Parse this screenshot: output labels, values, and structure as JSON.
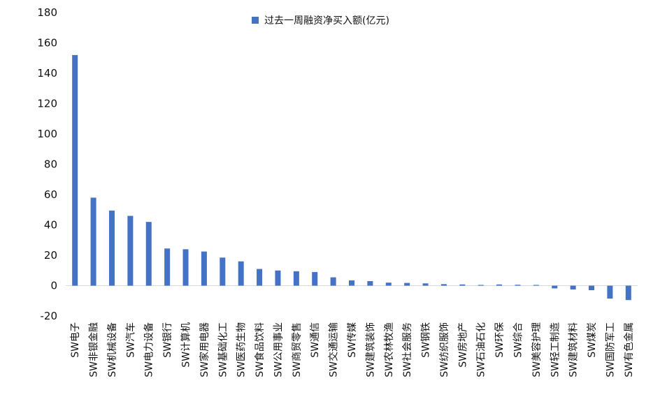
{
  "chart_data": {
    "type": "bar",
    "title": "",
    "xlabel": "",
    "ylabel": "",
    "ylim": [
      -20,
      180
    ],
    "yticks": [
      -20,
      0,
      20,
      40,
      60,
      80,
      100,
      120,
      140,
      160,
      180
    ],
    "grid": false,
    "legend_position": "top-center",
    "bar_color": "#4472C4",
    "categories": [
      "SW电子",
      "SW非银金融",
      "SW机械设备",
      "SW汽车",
      "SW电力设备",
      "SW银行",
      "SW计算机",
      "SW家用电器",
      "SW基础化工",
      "SW医药生物",
      "SW食品饮料",
      "SW公用事业",
      "SW商贸零售",
      "SW通信",
      "SW交通运输",
      "SW传媒",
      "SW建筑装饰",
      "SW农林牧渔",
      "SW社会服务",
      "SW钢铁",
      "SW纺织服饰",
      "SW房地产",
      "SW石油石化",
      "SW环保",
      "SW综合",
      "SW美容护理",
      "SW轻工制造",
      "SW建筑材料",
      "SW煤炭",
      "SW国防军工",
      "SW有色金属"
    ],
    "series": [
      {
        "name": "过去一周融资净买入额(亿元)",
        "values": [
          152,
          58,
          49.5,
          46,
          42,
          24.5,
          24,
          22.5,
          18.5,
          16,
          11,
          10,
          9.5,
          9,
          5.5,
          3.5,
          3,
          2,
          1.8,
          1.5,
          1,
          0.8,
          0.5,
          0.8,
          0.6,
          0.5,
          -1.8,
          -2.5,
          -3,
          -8.5,
          -9.5
        ]
      }
    ]
  }
}
